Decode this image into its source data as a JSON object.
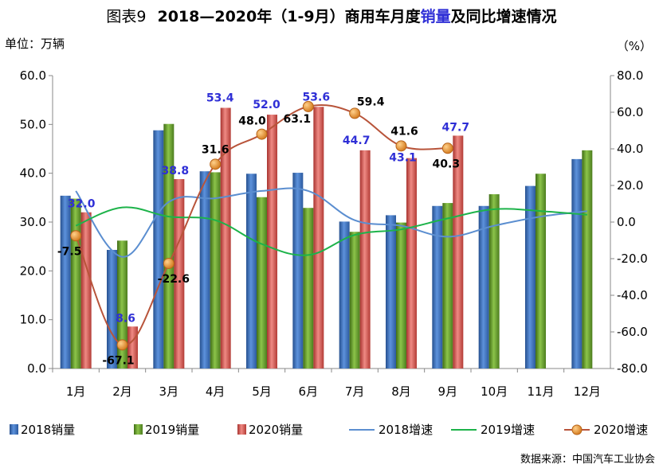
{
  "figure_number": "图表9",
  "title_main": "2018—2020年（1-9月）商用车月度",
  "title_highlight": "销量",
  "title_tail": "及同比增速情况",
  "unit_left": "单位：万辆",
  "unit_right": "（%）",
  "source": "数据来源：中国汽车工业协会",
  "colors": {
    "bar_2018": "#3a6fbf",
    "bar_2019": "#6fa234",
    "bar_2020": "#d35a55",
    "line_2018": "#5b8ed0",
    "line_2019": "#1db34a",
    "line_2020": "#b8543a",
    "marker_2020": "#e8912a",
    "label_blue": "#2f2fd6"
  },
  "chart_data": {
    "type": "bar",
    "categories": [
      "1月",
      "2月",
      "3月",
      "4月",
      "5月",
      "6月",
      "7月",
      "8月",
      "9月",
      "10月",
      "11月",
      "12月"
    ],
    "y_left": {
      "min": 0,
      "max": 60,
      "ticks": [
        "0.0",
        "10.0",
        "20.0",
        "30.0",
        "40.0",
        "50.0",
        "60.0"
      ]
    },
    "y_right": {
      "min": -80,
      "max": 80,
      "ticks": [
        "-80.0",
        "-60.0",
        "-40.0",
        "-20.0",
        "0.0",
        "20.0",
        "40.0",
        "60.0",
        "80.0"
      ]
    },
    "bar_series": [
      {
        "name": "2018销量",
        "values": [
          35.4,
          24.3,
          48.8,
          40.4,
          39.9,
          40.1,
          30.1,
          31.4,
          33.3,
          33.3,
          37.4,
          42.9
        ]
      },
      {
        "name": "2019销量",
        "values": [
          34.8,
          26.2,
          50.1,
          40.2,
          35.1,
          32.9,
          28.0,
          29.9,
          33.9,
          35.7,
          39.9,
          44.7
        ]
      },
      {
        "name": "2020销量",
        "values": [
          32.0,
          8.6,
          38.8,
          53.4,
          52.0,
          53.6,
          44.7,
          43.1,
          47.7
        ]
      }
    ],
    "line_series": [
      {
        "name": "2018增速",
        "values": [
          17,
          -19,
          11,
          13,
          17,
          17,
          1,
          -2,
          -8,
          -2,
          3,
          6
        ]
      },
      {
        "name": "2019增速",
        "values": [
          -2,
          8,
          3,
          1,
          -12,
          -18,
          -7,
          -4,
          2,
          7,
          6,
          4
        ]
      },
      {
        "name": "2020增速",
        "values": [
          -7.5,
          -67.1,
          -22.6,
          31.6,
          48.0,
          63.1,
          59.4,
          41.6,
          40.3
        ]
      }
    ],
    "bar_labels_2020": [
      "32.0",
      "8.6",
      "38.8",
      "53.4",
      "52.0",
      "53.6",
      "44.7",
      "43.1",
      "47.7"
    ],
    "line_labels_2020": [
      "-7.5",
      "-67.1",
      "-22.6",
      "31.6",
      "48.0",
      "63.1",
      "59.4",
      "41.6",
      "40.3"
    ],
    "legend": [
      "2018销量",
      "2019销量",
      "2020销量",
      "2018增速",
      "2019增速",
      "2020增速"
    ],
    "legend_position": "bottom",
    "grid": false
  }
}
